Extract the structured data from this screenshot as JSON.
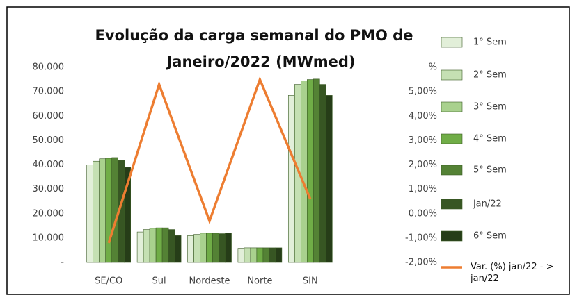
{
  "chart_data": {
    "type": "bar-line",
    "title": [
      "Evolução da carga semanal do PMO de",
      "Janeiro/2022 (MWmed)"
    ],
    "categories": [
      "SE/CO",
      "Sul",
      "Nordeste",
      "Norte",
      "SIN"
    ],
    "series": [
      {
        "name": "1° Sem",
        "color": "#e2efd9",
        "values": [
          40000,
          12500,
          11000,
          5800,
          68500
        ]
      },
      {
        "name": "2° Sem",
        "color": "#c5e0b3",
        "values": [
          41500,
          13500,
          11500,
          6000,
          73000
        ]
      },
      {
        "name": "3° Sem",
        "color": "#a9d18e",
        "values": [
          42500,
          14000,
          12000,
          6000,
          74500
        ]
      },
      {
        "name": "4° Sem",
        "color": "#70ad47",
        "values": [
          42700,
          14200,
          12000,
          6000,
          75000
        ]
      },
      {
        "name": "5° Sem",
        "color": "#548235",
        "values": [
          43000,
          14200,
          12000,
          6000,
          75200
        ]
      },
      {
        "name": "jan/22",
        "color": "#375623",
        "values": [
          41800,
          13500,
          11800,
          6000,
          73000
        ]
      },
      {
        "name": "6° Sem",
        "color": "#263d18",
        "values": [
          39000,
          11000,
          12000,
          6000,
          68500
        ]
      },
      {
        "name": "Var. (%) jan/22 - > jan/22",
        "color": "#ed7d31",
        "axis": "y2",
        "kind": "line",
        "values": [
          -1.2,
          5.3,
          -0.3,
          5.5,
          0.6
        ]
      }
    ],
    "ylim": [
      0,
      80000
    ],
    "yticks": [
      {
        "value": 0,
        "label": "-"
      },
      {
        "value": 10000,
        "label": "10.000"
      },
      {
        "value": 20000,
        "label": "20.000"
      },
      {
        "value": 30000,
        "label": "30.000"
      },
      {
        "value": 40000,
        "label": "40.000"
      },
      {
        "value": 50000,
        "label": "50.000"
      },
      {
        "value": 60000,
        "label": "60.000"
      },
      {
        "value": 70000,
        "label": "70.000"
      },
      {
        "value": 80000,
        "label": "80.000"
      }
    ],
    "y2lim": [
      -2,
      6
    ],
    "y2ticks": [
      {
        "value": -2,
        "label": "-2,00%"
      },
      {
        "value": -1,
        "label": "-1,00%"
      },
      {
        "value": 0,
        "label": "0,00%"
      },
      {
        "value": 1,
        "label": "1,00%"
      },
      {
        "value": 2,
        "label": "2,00%"
      },
      {
        "value": 3,
        "label": "3,00%"
      },
      {
        "value": 4,
        "label": "4,00%"
      },
      {
        "value": 5,
        "label": "5,00%"
      },
      {
        "value": 6,
        "label": "%"
      }
    ],
    "legend": "right"
  }
}
